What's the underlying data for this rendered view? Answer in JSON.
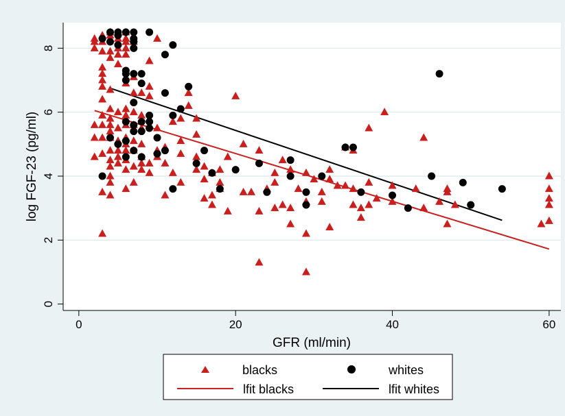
{
  "chart_data": {
    "type": "scatter",
    "xlabel": "GFR (ml/min)",
    "ylabel": "log FGF-23 (pg/ml)",
    "xlim": [
      -2,
      61.5
    ],
    "ylim": [
      -0.2,
      8.8
    ],
    "xticks": [
      0,
      20,
      40,
      60
    ],
    "yticks": [
      0,
      2,
      4,
      6,
      8
    ],
    "grid": "horizontal",
    "legend_position": "bottom",
    "colors": {
      "blacks": "#c8201e",
      "whites": "#000000",
      "outer_background": "#eaf2f3",
      "plot_background": "#ffffff",
      "gridline": "#e3eced"
    },
    "series": [
      {
        "name": "blacks",
        "marker": "triangle",
        "points": [
          [
            2,
            8.3
          ],
          [
            2,
            8.2
          ],
          [
            2,
            8.0
          ],
          [
            2,
            5.6
          ],
          [
            2,
            5.2
          ],
          [
            2,
            4.6
          ],
          [
            3,
            8.4
          ],
          [
            3,
            8.2
          ],
          [
            3,
            7.9
          ],
          [
            3,
            7.4
          ],
          [
            3,
            7.2
          ],
          [
            3,
            7.0
          ],
          [
            3,
            6.8
          ],
          [
            3,
            6.4
          ],
          [
            3,
            5.9
          ],
          [
            3,
            5.6
          ],
          [
            3,
            5.2
          ],
          [
            3,
            4.7
          ],
          [
            3,
            3.5
          ],
          [
            3,
            2.2
          ],
          [
            4,
            8.5
          ],
          [
            4,
            8.4
          ],
          [
            4,
            8.3
          ],
          [
            4,
            7.9
          ],
          [
            4,
            7.7
          ],
          [
            4,
            6.7
          ],
          [
            4,
            6.1
          ],
          [
            4,
            5.8
          ],
          [
            4,
            5.6
          ],
          [
            4,
            5.4
          ],
          [
            4,
            5.2
          ],
          [
            4,
            4.8
          ],
          [
            4,
            4.5
          ],
          [
            4,
            4.3
          ],
          [
            4,
            4.0
          ],
          [
            4,
            3.8
          ],
          [
            4,
            3.4
          ],
          [
            5,
            8.5
          ],
          [
            5,
            8.3
          ],
          [
            5,
            8.0
          ],
          [
            5,
            7.8
          ],
          [
            5,
            7.5
          ],
          [
            5,
            6.0
          ],
          [
            5,
            5.5
          ],
          [
            5,
            5.1
          ],
          [
            5,
            4.8
          ],
          [
            5,
            4.6
          ],
          [
            5,
            4.4
          ],
          [
            6,
            8.5
          ],
          [
            6,
            8.3
          ],
          [
            6,
            8.2
          ],
          [
            6,
            8.0
          ],
          [
            6,
            7.8
          ],
          [
            6,
            6.9
          ],
          [
            6,
            6.1
          ],
          [
            6,
            5.9
          ],
          [
            6,
            5.6
          ],
          [
            6,
            5.2
          ],
          [
            6,
            5.0
          ],
          [
            6,
            4.8
          ],
          [
            6,
            4.5
          ],
          [
            6,
            4.2
          ],
          [
            6,
            3.6
          ],
          [
            7,
            8.3
          ],
          [
            7,
            8.2
          ],
          [
            7,
            7.1
          ],
          [
            7,
            6.6
          ],
          [
            7,
            6.0
          ],
          [
            7,
            5.6
          ],
          [
            7,
            5.1
          ],
          [
            7,
            4.8
          ],
          [
            7,
            4.3
          ],
          [
            7,
            3.8
          ],
          [
            8,
            6.6
          ],
          [
            8,
            5.9
          ],
          [
            8,
            5.5
          ],
          [
            8,
            5.0
          ],
          [
            8,
            4.6
          ],
          [
            8,
            4.4
          ],
          [
            8,
            4.2
          ],
          [
            9,
            7.6
          ],
          [
            9,
            6.8
          ],
          [
            9,
            6.5
          ],
          [
            9,
            4.4
          ],
          [
            9,
            4.1
          ],
          [
            10,
            8.3
          ],
          [
            10,
            5.5
          ],
          [
            10,
            4.8
          ],
          [
            10,
            4.6
          ],
          [
            11,
            4.9
          ],
          [
            11,
            4.4
          ],
          [
            11,
            3.4
          ],
          [
            12,
            5.7
          ],
          [
            12,
            4.1
          ],
          [
            13,
            5.8
          ],
          [
            13,
            5.1
          ],
          [
            13,
            4.7
          ],
          [
            13,
            3.8
          ],
          [
            14,
            6.6
          ],
          [
            14,
            6.2
          ],
          [
            15,
            5.8
          ],
          [
            15,
            5.3
          ],
          [
            15,
            4.6
          ],
          [
            15,
            4.2
          ],
          [
            16,
            4.3
          ],
          [
            16,
            3.9
          ],
          [
            16,
            3.3
          ],
          [
            17,
            4.1
          ],
          [
            17,
            3.4
          ],
          [
            17,
            3.1
          ],
          [
            18,
            4.2
          ],
          [
            18,
            3.8
          ],
          [
            18,
            3.6
          ],
          [
            19,
            4.6
          ],
          [
            19,
            2.9
          ],
          [
            20,
            6.5
          ],
          [
            21,
            5.0
          ],
          [
            21,
            3.5
          ],
          [
            22,
            3.5
          ],
          [
            23,
            4.8
          ],
          [
            23,
            2.9
          ],
          [
            23,
            1.3
          ],
          [
            24,
            3.6
          ],
          [
            25,
            4.1
          ],
          [
            25,
            3.8
          ],
          [
            25,
            3.0
          ],
          [
            26,
            4.5
          ],
          [
            26,
            3.1
          ],
          [
            27,
            4.2
          ],
          [
            27,
            3.0
          ],
          [
            27,
            2.5
          ],
          [
            28,
            3.6
          ],
          [
            29,
            4.1
          ],
          [
            29,
            3.2
          ],
          [
            29,
            2.2
          ],
          [
            29,
            1.0
          ],
          [
            30,
            3.9
          ],
          [
            31,
            3.5
          ],
          [
            31,
            3.2
          ],
          [
            32,
            4.2
          ],
          [
            32,
            3.9
          ],
          [
            32,
            2.4
          ],
          [
            33,
            3.7
          ],
          [
            34,
            4.9
          ],
          [
            34,
            3.7
          ],
          [
            35,
            4.8
          ],
          [
            35,
            3.6
          ],
          [
            35,
            3.1
          ],
          [
            36,
            3.0
          ],
          [
            36,
            2.7
          ],
          [
            37,
            5.5
          ],
          [
            37,
            3.8
          ],
          [
            37,
            3.1
          ],
          [
            38,
            3.3
          ],
          [
            39,
            6.0
          ],
          [
            40,
            3.7
          ],
          [
            40,
            3.2
          ],
          [
            43,
            3.6
          ],
          [
            44,
            5.2
          ],
          [
            44,
            3.0
          ],
          [
            46,
            3.2
          ],
          [
            47,
            3.6
          ],
          [
            47,
            3.5
          ],
          [
            47,
            2.5
          ],
          [
            48,
            3.1
          ],
          [
            59,
            2.5
          ],
          [
            60,
            4.0
          ],
          [
            60,
            3.6
          ],
          [
            60,
            3.3
          ],
          [
            60,
            3.1
          ],
          [
            60,
            2.6
          ]
        ]
      },
      {
        "name": "whites",
        "marker": "circle",
        "points": [
          [
            3,
            8.3
          ],
          [
            3,
            4.0
          ],
          [
            4,
            8.5
          ],
          [
            4,
            8.2
          ],
          [
            4,
            5.2
          ],
          [
            5,
            8.5
          ],
          [
            5,
            8.4
          ],
          [
            5,
            8.1
          ],
          [
            5,
            5.0
          ],
          [
            6,
            8.5
          ],
          [
            6,
            7.3
          ],
          [
            6,
            7.2
          ],
          [
            6,
            7.0
          ],
          [
            6,
            5.7
          ],
          [
            6,
            5.1
          ],
          [
            6,
            4.6
          ],
          [
            7,
            8.5
          ],
          [
            7,
            8.3
          ],
          [
            7,
            8.2
          ],
          [
            7,
            8.0
          ],
          [
            7,
            7.2
          ],
          [
            7,
            6.3
          ],
          [
            7,
            5.6
          ],
          [
            7,
            5.4
          ],
          [
            7,
            4.8
          ],
          [
            8,
            7.2
          ],
          [
            8,
            6.9
          ],
          [
            8,
            5.7
          ],
          [
            8,
            5.4
          ],
          [
            8,
            4.6
          ],
          [
            9,
            8.5
          ],
          [
            9,
            5.9
          ],
          [
            9,
            5.7
          ],
          [
            9,
            5.5
          ],
          [
            10,
            5.2
          ],
          [
            10,
            4.7
          ],
          [
            11,
            7.8
          ],
          [
            11,
            6.6
          ],
          [
            11,
            4.8
          ],
          [
            12,
            8.1
          ],
          [
            12,
            5.9
          ],
          [
            12,
            3.6
          ],
          [
            13,
            6.1
          ],
          [
            14,
            6.8
          ],
          [
            15,
            4.4
          ],
          [
            16,
            4.8
          ],
          [
            17,
            4.1
          ],
          [
            18,
            3.6
          ],
          [
            20,
            4.2
          ],
          [
            23,
            4.4
          ],
          [
            24,
            3.5
          ],
          [
            27,
            4.5
          ],
          [
            27,
            4.0
          ],
          [
            29,
            3.5
          ],
          [
            29,
            3.1
          ],
          [
            31,
            4.0
          ],
          [
            34,
            4.9
          ],
          [
            35,
            4.9
          ],
          [
            36,
            3.5
          ],
          [
            40,
            3.4
          ],
          [
            42,
            3.0
          ],
          [
            45,
            4.0
          ],
          [
            46,
            7.2
          ],
          [
            49,
            3.8
          ],
          [
            50,
            3.1
          ],
          [
            54,
            3.6
          ]
        ]
      },
      {
        "name": "lfit blacks",
        "type": "line",
        "x": [
          2,
          60
        ],
        "y": [
          6.05,
          1.72
        ]
      },
      {
        "name": "lfit whites",
        "type": "line",
        "x": [
          4,
          54
        ],
        "y": [
          6.75,
          2.62
        ]
      }
    ]
  }
}
